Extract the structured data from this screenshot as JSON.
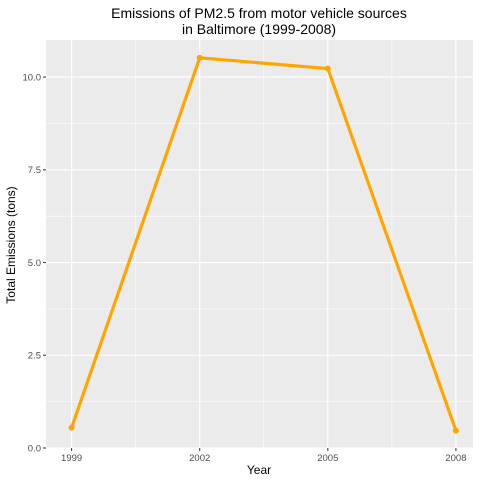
{
  "chart_data": {
    "type": "line",
    "title_lines": [
      "Emissions of PM2.5 from motor vehicle sources",
      "in Baltimore (1999-2008)"
    ],
    "xlabel": "Year",
    "ylabel": "Total Emissions (tons)",
    "x": [
      1999,
      2002,
      2005,
      2008
    ],
    "x_tick_labels": [
      "1999",
      "2002",
      "2005",
      "2008"
    ],
    "xlim": [
      1998.4,
      2008.4
    ],
    "series": [
      {
        "values": [
          0.55,
          10.52,
          10.23,
          0.47
        ],
        "color": "#FFA500"
      }
    ],
    "ylim": [
      0,
      11.0
    ],
    "y_ticks": [
      0,
      2.5,
      5.0,
      7.5,
      10.0
    ],
    "y_tick_labels": [
      "0.0",
      "2.5",
      "5.0",
      "7.5",
      "10.0"
    ],
    "panel_background": "#EBEBEB",
    "grid_major_color": "#FFFFFF",
    "grid": true,
    "legend": "none"
  }
}
